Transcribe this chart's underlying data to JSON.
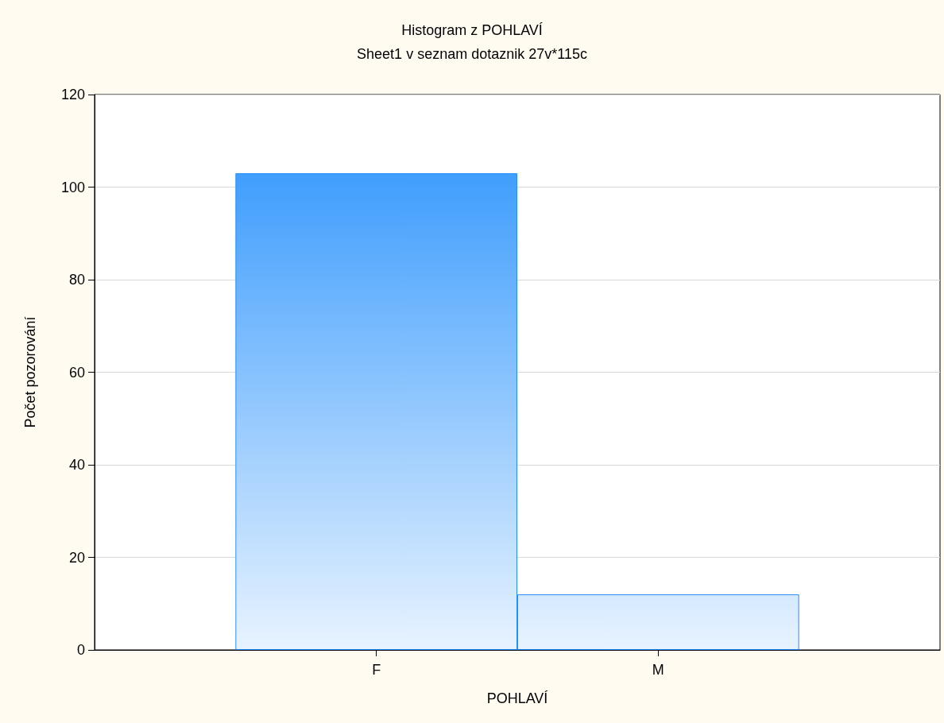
{
  "chart_data": {
    "type": "bar",
    "title": "Histogram z POHLAVÍ",
    "subtitle": "Sheet1 v seznam dotaznik 27v*115c",
    "xlabel": "POHLAVÍ",
    "ylabel": "Počet pozorování",
    "categories": [
      "F",
      "M"
    ],
    "values": [
      103,
      12
    ],
    "color": "#2490fc",
    "ylim": [
      0,
      120
    ],
    "yticks": [
      0,
      20,
      40,
      60,
      80,
      100,
      120
    ],
    "grid": "y"
  }
}
